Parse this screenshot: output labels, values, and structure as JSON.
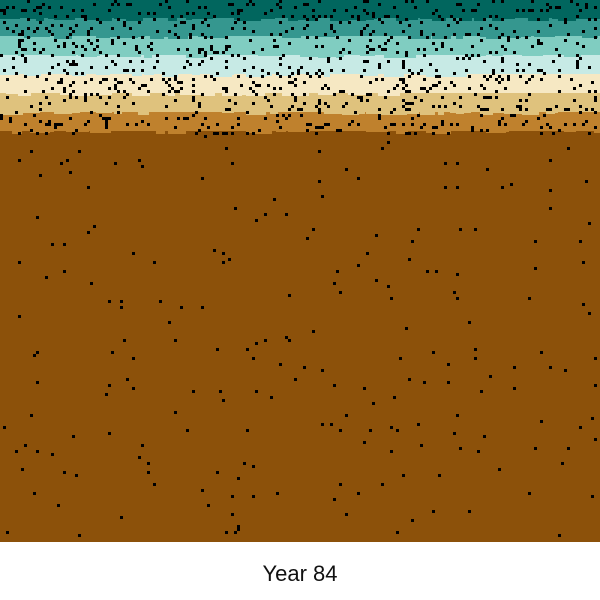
{
  "caption": "Year 84",
  "simulation": {
    "year": 84,
    "legend": "none",
    "grid": false
  },
  "palette": {
    "deep_teal": "#01665e",
    "teal": "#35978f",
    "light_teal": "#80cdc1",
    "pale_teal": "#c7eae5",
    "cream": "#f6e8c3",
    "tan": "#dfc27d",
    "ochre": "#bf812d",
    "brown": "#8c510a",
    "particle": "#000000"
  },
  "layers": [
    {
      "color_key": "deep_teal"
    },
    {
      "color_key": "teal"
    },
    {
      "color_key": "light_teal"
    },
    {
      "color_key": "pale_teal"
    },
    {
      "color_key": "cream"
    },
    {
      "color_key": "tan"
    },
    {
      "color_key": "ochre"
    },
    {
      "color_key": "brown"
    }
  ]
}
